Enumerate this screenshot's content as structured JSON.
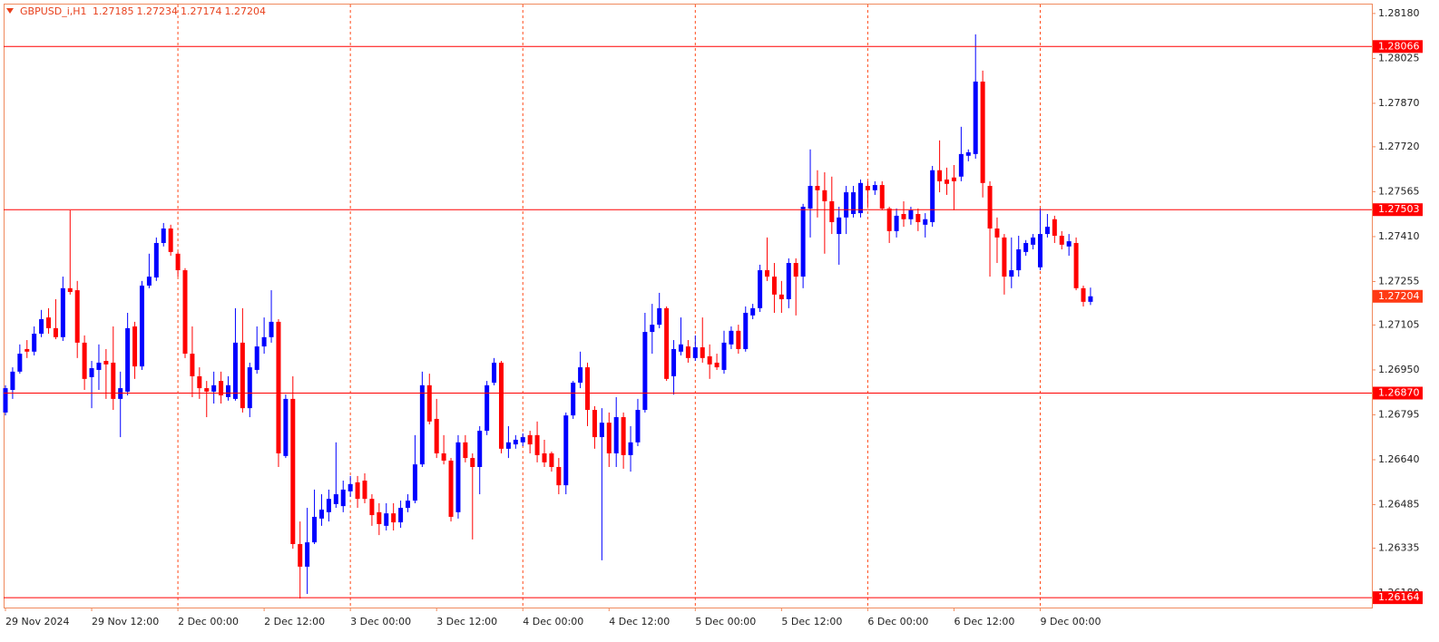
{
  "chart_data": {
    "type": "candlestick",
    "title": "GBPUSD_i,H1",
    "categories": [
      "29 Nov 2024",
      null,
      null,
      null,
      null,
      null,
      null,
      null,
      null,
      null,
      null,
      null,
      "29 Nov 12:00",
      null,
      null,
      null,
      null,
      null,
      null,
      null,
      null,
      null,
      null,
      null,
      "2 Dec 00:00",
      null,
      null,
      null,
      null,
      null,
      null,
      null,
      null,
      null,
      null,
      null,
      "2 Dec 12:00",
      null,
      null,
      null,
      null,
      null,
      null,
      null,
      null,
      null,
      null,
      null,
      "3 Dec 00:00",
      null,
      null,
      null,
      null,
      null,
      null,
      null,
      null,
      null,
      null,
      null,
      "3 Dec 12:00",
      null,
      null,
      null,
      null,
      null,
      null,
      null,
      null,
      null,
      null,
      null,
      "4 Dec 00:00",
      null,
      null,
      null,
      null,
      null,
      null,
      null,
      null,
      null,
      null,
      null,
      "4 Dec 12:00",
      null,
      null,
      null,
      null,
      null,
      null,
      null,
      null,
      null,
      null,
      null,
      "5 Dec 00:00",
      null,
      null,
      null,
      null,
      null,
      null,
      null,
      null,
      null,
      null,
      null,
      "5 Dec 12:00",
      null,
      null,
      null,
      null,
      null,
      null,
      null,
      null,
      null,
      null,
      null,
      "6 Dec 00:00",
      null,
      null,
      null,
      null,
      null,
      null,
      null,
      null,
      null,
      null,
      null,
      "6 Dec 12:00",
      null,
      null,
      null,
      null,
      null,
      null,
      null,
      null,
      null,
      null,
      null,
      "9 Dec 00:00",
      null,
      null,
      null,
      null,
      null,
      null,
      null
    ],
    "open": [
      1.26803,
      1.26881,
      1.26944,
      1.27022,
      1.27013,
      1.27075,
      1.27131,
      1.27094,
      1.27063,
      1.27232,
      1.27225,
      1.27044,
      1.26925,
      1.2695,
      1.26981,
      1.26975,
      1.2685,
      1.26875,
      1.271,
      1.26962,
      1.27241,
      1.27269,
      1.27388,
      1.27438,
      1.27351,
      1.27294,
      1.27006,
      1.26928,
      1.26887,
      1.26875,
      1.26912,
      1.26856,
      1.2685,
      1.27044,
      1.26818,
      1.2695,
      1.27031,
      1.27063,
      1.27116,
      1.26653,
      1.2685,
      1.26349,
      1.26271,
      1.26355,
      1.26437,
      1.26459,
      1.26487,
      1.2648,
      1.26531,
      1.26562,
      1.26568,
      1.26505,
      1.26459,
      1.26412,
      1.26455,
      1.26424,
      1.26474,
      1.26499,
      1.26624,
      1.26897,
      1.26781,
      1.26662,
      1.26637,
      1.26459,
      1.267,
      1.26646,
      1.26615,
      1.2674,
      1.26906,
      1.26975,
      1.26678,
      1.26693,
      1.267,
      1.26725,
      1.26725,
      1.26662,
      1.26662,
      1.26615,
      1.26552,
      1.26793,
      1.26906,
      1.26959,
      1.26812,
      1.26718,
      1.26768,
      1.26662,
      1.26787,
      1.26656,
      1.267,
      1.26812,
      1.27081,
      1.27106,
      1.27163,
      1.26928,
      1.27013,
      1.27031,
      1.26991,
      1.27028,
      1.26997,
      1.26975,
      1.2695,
      1.27038,
      1.27085,
      1.27022,
      1.27138,
      1.27163,
      1.27294,
      1.27272,
      1.2721,
      1.27194,
      1.27319,
      1.27272,
      1.27507,
      1.27585,
      1.2757,
      1.27532,
      1.27419,
      1.27476,
      1.27488,
      1.27491,
      1.27585,
      1.2757,
      1.27588,
      1.27507,
      1.27429,
      1.27488,
      1.2747,
      1.27488,
      1.27451,
      1.2746,
      1.27639,
      1.27607,
      1.27614,
      1.27617,
      1.27689,
      1.27695,
      1.27945,
      1.27585,
      1.27438,
      1.27407,
      1.27272,
      1.27294,
      1.27357,
      1.27382,
      1.27304,
      1.27419,
      1.2747,
      1.27413,
      1.27376,
      1.27388,
      1.27232,
      1.27185
    ],
    "high": [
      1.26897,
      1.26959,
      1.27038,
      1.27053,
      1.271,
      1.27157,
      1.27163,
      1.27194,
      1.27272,
      1.27501,
      1.27257,
      1.27069,
      1.26981,
      1.27038,
      1.27022,
      1.271,
      1.26944,
      1.27147,
      1.27116,
      1.27257,
      1.27351,
      1.27407,
      1.27457,
      1.27451,
      1.27357,
      1.27301,
      1.271,
      1.26959,
      1.26912,
      1.26944,
      1.26944,
      1.26928,
      1.27163,
      1.27163,
      1.26975,
      1.271,
      1.27131,
      1.27225,
      1.27125,
      1.26865,
      1.26928,
      1.26427,
      1.26474,
      1.26537,
      1.26521,
      1.26537,
      1.267,
      1.26568,
      1.26584,
      1.26584,
      1.26593,
      1.26521,
      1.2649,
      1.2649,
      1.2649,
      1.26499,
      1.26521,
      1.26725,
      1.26944,
      1.26937,
      1.2685,
      1.26725,
      1.26646,
      1.26725,
      1.26725,
      1.26662,
      1.26756,
      1.26912,
      1.26991,
      1.26981,
      1.26756,
      1.26725,
      1.26731,
      1.2674,
      1.26772,
      1.26709,
      1.26668,
      1.26646,
      1.26803,
      1.26912,
      1.27013,
      1.26975,
      1.26825,
      1.26818,
      1.26803,
      1.26856,
      1.26803,
      1.26756,
      1.2685,
      1.27147,
      1.27178,
      1.27216,
      1.27169,
      1.27053,
      1.27131,
      1.27053,
      1.27069,
      1.27131,
      1.27038,
      1.27006,
      1.27085,
      1.271,
      1.27106,
      1.27169,
      1.27178,
      1.27313,
      1.27407,
      1.27319,
      1.27257,
      1.27335,
      1.27335,
      1.27523,
      1.27711,
      1.27639,
      1.27632,
      1.27617,
      1.27513,
      1.27585,
      1.27585,
      1.27607,
      1.27601,
      1.27601,
      1.27601,
      1.27513,
      1.27507,
      1.27532,
      1.27513,
      1.27507,
      1.27491,
      1.27654,
      1.27742,
      1.27648,
      1.27657,
      1.27789,
      1.27711,
      1.28108,
      1.27983,
      1.27601,
      1.27476,
      1.27419,
      1.27407,
      1.27413,
      1.27398,
      1.27419,
      1.27507,
      1.27488,
      1.27482,
      1.27429,
      1.27419,
      1.27407,
      1.27241,
      1.27234
    ],
    "low": [
      1.26793,
      1.2685,
      1.26937,
      1.26991,
      1.27,
      1.27063,
      1.27075,
      1.27056,
      1.2705,
      1.2721,
      1.26991,
      1.26881,
      1.26818,
      1.26881,
      1.2685,
      1.26812,
      1.26718,
      1.26862,
      1.26919,
      1.2695,
      1.27232,
      1.27257,
      1.27376,
      1.27344,
      1.27272,
      1.26991,
      1.26856,
      1.2685,
      1.26787,
      1.26834,
      1.26834,
      1.26844,
      1.26844,
      1.26803,
      1.26787,
      1.26937,
      1.27006,
      1.27044,
      1.26615,
      1.26646,
      1.26333,
      1.26161,
      1.26177,
      1.26349,
      1.26412,
      1.26427,
      1.26474,
      1.26459,
      1.26512,
      1.26474,
      1.2649,
      1.26412,
      1.2638,
      1.26396,
      1.26396,
      1.26405,
      1.26459,
      1.2649,
      1.26615,
      1.26762,
      1.26646,
      1.26624,
      1.26427,
      1.26437,
      1.26631,
      1.26365,
      1.26521,
      1.26725,
      1.26897,
      1.26662,
      1.26646,
      1.26678,
      1.26687,
      1.26662,
      1.26631,
      1.26615,
      1.26599,
      1.26521,
      1.26521,
      1.26781,
      1.26887,
      1.26756,
      1.26678,
      1.26293,
      1.26615,
      1.26615,
      1.26609,
      1.26599,
      1.26687,
      1.26803,
      1.27006,
      1.27094,
      1.26912,
      1.26865,
      1.27,
      1.26975,
      1.26981,
      1.26975,
      1.26919,
      1.2695,
      1.26937,
      1.27022,
      1.27006,
      1.27013,
      1.27125,
      1.2715,
      1.27257,
      1.27147,
      1.27147,
      1.27163,
      1.27138,
      1.27232,
      1.27407,
      1.27476,
      1.27351,
      1.27419,
      1.27313,
      1.27419,
      1.27476,
      1.27476,
      1.27513,
      1.27554,
      1.27501,
      1.27388,
      1.27407,
      1.27444,
      1.27451,
      1.27429,
      1.27407,
      1.27444,
      1.27563,
      1.27554,
      1.27501,
      1.27601,
      1.2767,
      1.27679,
      1.27545,
      1.27272,
      1.27319,
      1.2721,
      1.27232,
      1.27272,
      1.27344,
      1.27366,
      1.27294,
      1.27407,
      1.27388,
      1.27366,
      1.27344,
      1.27225,
      1.27169,
      1.27174
    ],
    "close": [
      1.26887,
      1.26944,
      1.27006,
      1.27013,
      1.27075,
      1.27125,
      1.27094,
      1.27063,
      1.27232,
      1.27219,
      1.27044,
      1.26919,
      1.26956,
      1.26975,
      1.26969,
      1.2685,
      1.26887,
      1.27094,
      1.26962,
      1.27241,
      1.27272,
      1.27388,
      1.27438,
      1.27357,
      1.27294,
      1.27006,
      1.26928,
      1.26887,
      1.26875,
      1.26897,
      1.26862,
      1.26897,
      1.27044,
      1.26818,
      1.26959,
      1.27031,
      1.27063,
      1.27116,
      1.26662,
      1.2685,
      1.26349,
      1.26271,
      1.26355,
      1.26443,
      1.26468,
      1.26505,
      1.26521,
      1.26537,
      1.26556,
      1.26505,
      1.26505,
      1.26449,
      1.26418,
      1.26455,
      1.26424,
      1.26474,
      1.26499,
      1.26624,
      1.26897,
      1.26772,
      1.26662,
      1.26637,
      1.26443,
      1.267,
      1.26646,
      1.26615,
      1.2674,
      1.26897,
      1.26975,
      1.26678,
      1.267,
      1.26709,
      1.26718,
      1.26693,
      1.26656,
      1.26631,
      1.26615,
      1.26552,
      1.26793,
      1.26906,
      1.26959,
      1.26812,
      1.26718,
      1.26768,
      1.26662,
      1.26787,
      1.26656,
      1.267,
      1.26812,
      1.27081,
      1.27106,
      1.27163,
      1.26919,
      1.27022,
      1.27038,
      1.26991,
      1.27028,
      1.26991,
      1.26969,
      1.26959,
      1.27044,
      1.27085,
      1.27022,
      1.27147,
      1.27163,
      1.27294,
      1.27272,
      1.2721,
      1.27194,
      1.27319,
      1.27272,
      1.27513,
      1.27585,
      1.2757,
      1.27532,
      1.2746,
      1.27476,
      1.27563,
      1.27563,
      1.27595,
      1.2757,
      1.27588,
      1.27507,
      1.27429,
      1.27482,
      1.2747,
      1.27501,
      1.2746,
      1.2747,
      1.27639,
      1.27601,
      1.27592,
      1.27601,
      1.27695,
      1.27701,
      1.27945,
      1.27595,
      1.27438,
      1.27407,
      1.27272,
      1.27294,
      1.27366,
      1.27388,
      1.27407,
      1.27419,
      1.27444,
      1.27413,
      1.27382,
      1.27394,
      1.27232,
      1.27185,
      1.27204
    ],
    "up_color": "#0000ff",
    "down_color": "#ff0000",
    "ylim": [
      1.2613,
      1.28214
    ],
    "yticks": [
      {
        "value": 1.2818,
        "label": "1.28180"
      },
      1.28025,
      {
        "value": 1.2787,
        "label": "1.27870"
      },
      {
        "value": 1.2772,
        "label": "1.27720"
      },
      1.27565,
      {
        "value": 1.2741,
        "label": "1.27410"
      },
      1.27255,
      1.27105,
      {
        "value": 1.2695,
        "label": "1.26950"
      },
      1.26795,
      {
        "value": 1.2664,
        "label": "1.26640"
      },
      1.26485,
      1.26335,
      {
        "value": 1.2618,
        "label": "1.26180"
      }
    ],
    "levels": [
      1.28066,
      1.27503,
      {
        "value": 1.2687,
        "label": "1.26870"
      },
      1.26164
    ],
    "level_color": "#ff0000",
    "last_price": 1.27204,
    "last_price_color": "#ff3a14",
    "grid": true,
    "grid_color": "#ff4a1a"
  }
}
